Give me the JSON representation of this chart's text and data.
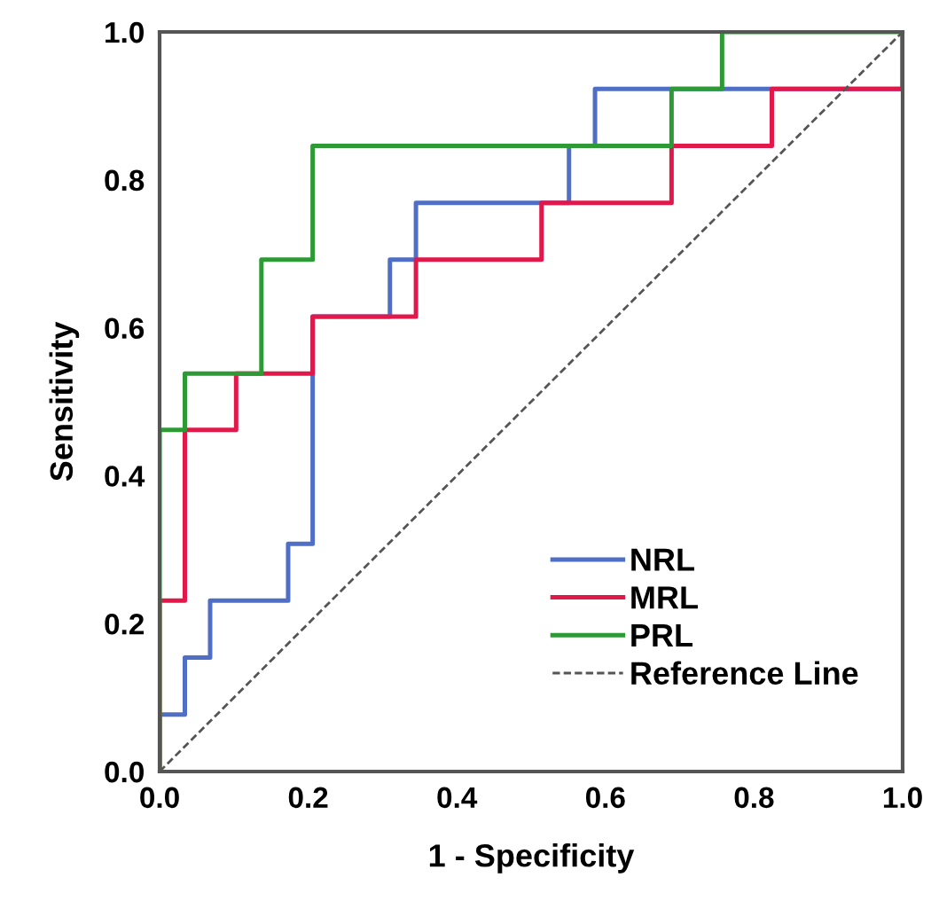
{
  "chart_data": {
    "type": "step",
    "xlabel": "1 - Specificity",
    "ylabel": "Sensitivity",
    "xlim": [
      0,
      1
    ],
    "ylim": [
      0,
      1
    ],
    "xticks": [
      {
        "value": 0,
        "label": "0.0"
      },
      {
        "value": 0.2,
        "label": "0.2"
      },
      {
        "value": 0.4,
        "label": "0.4"
      },
      {
        "value": 0.6,
        "label": "0.6"
      },
      {
        "value": 0.8,
        "label": "0.8"
      },
      {
        "value": 1,
        "label": "1.0"
      }
    ],
    "yticks": [
      {
        "value": 0,
        "label": "0.0"
      },
      {
        "value": 0.2,
        "label": "0.2"
      },
      {
        "value": 0.4,
        "label": "0.4"
      },
      {
        "value": 0.6,
        "label": "0.6"
      },
      {
        "value": 0.8,
        "label": "0.8"
      },
      {
        "value": 1,
        "label": "1.0"
      }
    ],
    "grid": false,
    "legend": "bottom right",
    "series": [
      {
        "name": "NRL",
        "color": "#4f6fc6",
        "x": [
          0,
          0,
          0.034,
          0.068,
          0.173,
          0.206,
          0.31,
          0.345,
          0.551,
          0.586,
          1.0
        ],
        "values": [
          0,
          0.077,
          0.154,
          0.231,
          0.308,
          0.615,
          0.692,
          0.769,
          0.846,
          0.923,
          1.0
        ]
      },
      {
        "name": "MRL",
        "color": "#e0194a",
        "x": [
          0,
          0,
          0.034,
          0.103,
          0.206,
          0.345,
          0.514,
          0.689,
          0.824,
          1.0
        ],
        "values": [
          0,
          0.231,
          0.462,
          0.538,
          0.615,
          0.692,
          0.769,
          0.846,
          0.923,
          1.0
        ]
      },
      {
        "name": "PRL",
        "color": "#2e9a36",
        "x": [
          0,
          0,
          0.034,
          0.137,
          0.206,
          0.689,
          0.757,
          1.0
        ],
        "values": [
          0,
          0.462,
          0.538,
          0.692,
          0.846,
          0.923,
          1.0,
          1.0
        ]
      },
      {
        "name": "Reference Line",
        "type": "line",
        "line_style": "dashed",
        "color": "#555555",
        "x": [
          0,
          1
        ],
        "values": [
          0,
          1
        ]
      }
    ]
  }
}
